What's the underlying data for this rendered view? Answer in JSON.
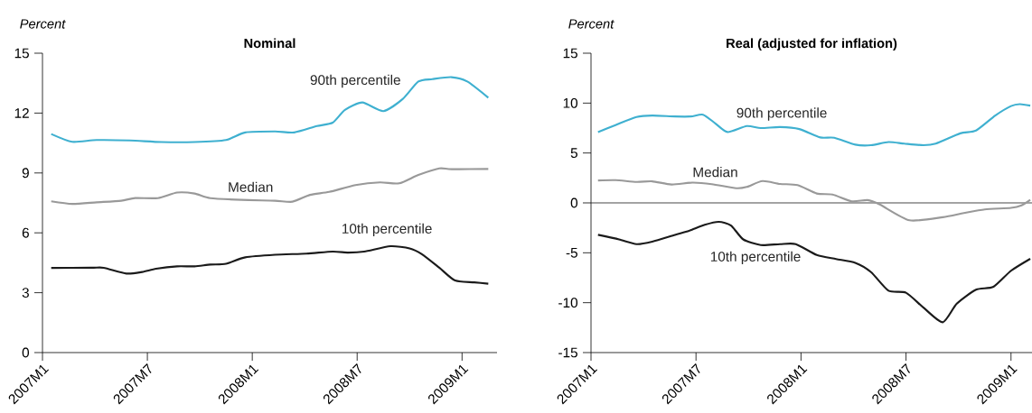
{
  "chart_data": [
    {
      "type": "line",
      "title": "Nominal",
      "ylabel": "Percent",
      "xlim": [
        "2007-01-01",
        "2009-03-01"
      ],
      "ylim": [
        0,
        15
      ],
      "xticks": [
        {
          "value": "2007-01",
          "label": "2007M1"
        },
        {
          "value": "2007-07",
          "label": "2007M7"
        },
        {
          "value": "2008-01",
          "label": "2008M1"
        },
        {
          "value": "2008-07",
          "label": "2008M7"
        },
        {
          "value": "2009-01",
          "label": "2009M1"
        }
      ],
      "yticks": [
        0,
        3,
        6,
        9,
        12,
        15
      ],
      "series": [
        {
          "name": "90th percentile",
          "color": "#3fb0d0",
          "x": [
            "2007-01-16",
            "2007-02-22",
            "2007-04-04",
            "2007-06-01",
            "2007-07-25",
            "2007-09-22",
            "2007-11-16",
            "2007-12-19",
            "2008-02-10",
            "2008-03-13",
            "2008-04-22",
            "2008-05-19",
            "2008-06-10",
            "2008-07-10",
            "2008-08-16",
            "2008-09-19",
            "2008-10-16",
            "2008-11-10",
            "2008-12-13",
            "2009-01-10",
            "2009-02-16"
          ],
          "values": [
            10.95,
            10.56,
            10.65,
            10.63,
            10.55,
            10.55,
            10.65,
            11.03,
            11.08,
            11.03,
            11.35,
            11.52,
            12.16,
            12.53,
            12.1,
            12.7,
            13.58,
            13.7,
            13.8,
            13.58,
            12.77
          ]
        },
        {
          "name": "Median",
          "color": "#999999",
          "x": [
            "2007-01-16",
            "2007-02-22",
            "2007-04-04",
            "2007-05-16",
            "2007-06-10",
            "2007-07-19",
            "2007-08-22",
            "2007-09-22",
            "2007-10-19",
            "2007-12-13",
            "2008-02-10",
            "2008-03-10",
            "2008-04-10",
            "2008-05-13",
            "2008-06-28",
            "2008-08-10",
            "2008-09-13",
            "2008-10-16",
            "2008-11-22",
            "2008-12-13",
            "2009-02-16"
          ],
          "values": [
            7.58,
            7.45,
            7.53,
            7.61,
            7.74,
            7.74,
            8.02,
            7.97,
            7.74,
            7.65,
            7.61,
            7.56,
            7.9,
            8.05,
            8.39,
            8.53,
            8.48,
            8.9,
            9.23,
            9.19,
            9.2
          ]
        },
        {
          "name": "10th percentile",
          "color": "#1a1a1a",
          "x": [
            "2007-01-16",
            "2007-03-25",
            "2007-04-16",
            "2007-05-25",
            "2007-06-22",
            "2007-07-16",
            "2007-08-22",
            "2007-09-22",
            "2007-10-19",
            "2007-11-16",
            "2007-12-19",
            "2008-02-10",
            "2008-04-04",
            "2008-05-19",
            "2008-06-16",
            "2008-07-13",
            "2008-08-28",
            "2008-10-01",
            "2008-10-22",
            "2008-11-22",
            "2008-12-19",
            "2009-01-22",
            "2009-02-16"
          ],
          "values": [
            4.24,
            4.25,
            4.25,
            3.96,
            4.04,
            4.2,
            4.32,
            4.32,
            4.41,
            4.45,
            4.77,
            4.9,
            4.96,
            5.06,
            5.01,
            5.06,
            5.33,
            5.22,
            4.93,
            4.25,
            3.61,
            3.52,
            3.45
          ]
        }
      ]
    },
    {
      "type": "line",
      "title": "Real (adjusted for inflation)",
      "ylabel": "Percent",
      "xlim": [
        "2007-01-01",
        "2009-02-07"
      ],
      "ylim": [
        -15,
        15
      ],
      "xticks": [
        {
          "value": "2007-01",
          "label": "2007M1"
        },
        {
          "value": "2007-07",
          "label": "2007M7"
        },
        {
          "value": "2008-01",
          "label": "2008M1"
        },
        {
          "value": "2008-07",
          "label": "2008M7"
        },
        {
          "value": "2009-01",
          "label": "2009M1"
        }
      ],
      "yticks": [
        -15,
        -10,
        -5,
        0,
        5,
        10,
        15
      ],
      "ref_lines": [
        {
          "axis": "y",
          "value": 0,
          "color": "#1a1a1a"
        }
      ],
      "series": [
        {
          "name": "90th percentile",
          "color": "#3fb0d0",
          "x": [
            "2007-01-13",
            "2007-02-13",
            "2007-03-19",
            "2007-04-16",
            "2007-05-25",
            "2007-06-22",
            "2007-07-13",
            "2007-08-04",
            "2007-08-25",
            "2007-09-28",
            "2007-10-22",
            "2007-11-25",
            "2007-12-28",
            "2008-02-04",
            "2008-02-28",
            "2008-04-04",
            "2008-05-01",
            "2008-06-01",
            "2008-06-28",
            "2008-08-01",
            "2008-08-22",
            "2008-10-04",
            "2008-11-01",
            "2008-12-04",
            "2009-01-01",
            "2009-01-16",
            "2009-02-04"
          ],
          "values": [
            7.1,
            7.8,
            8.6,
            8.75,
            8.66,
            8.66,
            8.84,
            7.97,
            7.1,
            7.7,
            7.5,
            7.6,
            7.4,
            6.56,
            6.53,
            5.84,
            5.78,
            6.1,
            5.94,
            5.78,
            5.94,
            6.97,
            7.25,
            8.75,
            9.7,
            9.9,
            9.75
          ]
        },
        {
          "name": "Median",
          "color": "#999999",
          "x": [
            "2007-01-13",
            "2007-02-13",
            "2007-03-19",
            "2007-04-16",
            "2007-05-19",
            "2007-06-25",
            "2007-07-28",
            "2007-09-10",
            "2007-09-28",
            "2007-10-25",
            "2007-11-25",
            "2007-12-25",
            "2008-01-28",
            "2008-02-25",
            "2008-03-28",
            "2008-04-25",
            "2008-05-16",
            "2008-07-07",
            "2008-09-04",
            "2008-10-10",
            "2008-11-16",
            "2009-01-01",
            "2009-01-19",
            "2009-02-04"
          ],
          "values": [
            2.25,
            2.28,
            2.1,
            2.16,
            1.84,
            2.03,
            1.88,
            1.47,
            1.6,
            2.19,
            1.9,
            1.78,
            0.94,
            0.84,
            0.16,
            0.28,
            -0.16,
            -1.74,
            -1.43,
            -1.02,
            -0.65,
            -0.5,
            -0.25,
            0.31
          ]
        },
        {
          "name": "10th percentile",
          "color": "#1a1a1a",
          "x": [
            "2007-01-13",
            "2007-02-19",
            "2007-03-19",
            "2007-04-16",
            "2007-05-25",
            "2007-06-19",
            "2007-07-16",
            "2007-08-10",
            "2007-09-01",
            "2007-09-22",
            "2007-10-22",
            "2007-11-25",
            "2007-12-22",
            "2008-01-28",
            "2008-03-01",
            "2008-04-04",
            "2008-05-01",
            "2008-06-01",
            "2008-07-01",
            "2008-08-01",
            "2008-09-04",
            "2008-09-28",
            "2008-11-01",
            "2008-12-01",
            "2009-01-01",
            "2009-02-04"
          ],
          "values": [
            -3.2,
            -3.66,
            -4.13,
            -3.88,
            -3.2,
            -2.8,
            -2.2,
            -1.9,
            -2.27,
            -3.66,
            -4.22,
            -4.13,
            -4.13,
            -5.22,
            -5.62,
            -6.0,
            -6.93,
            -8.8,
            -9.0,
            -10.5,
            -11.96,
            -10.1,
            -8.7,
            -8.4,
            -6.8,
            -5.6
          ]
        }
      ]
    }
  ]
}
